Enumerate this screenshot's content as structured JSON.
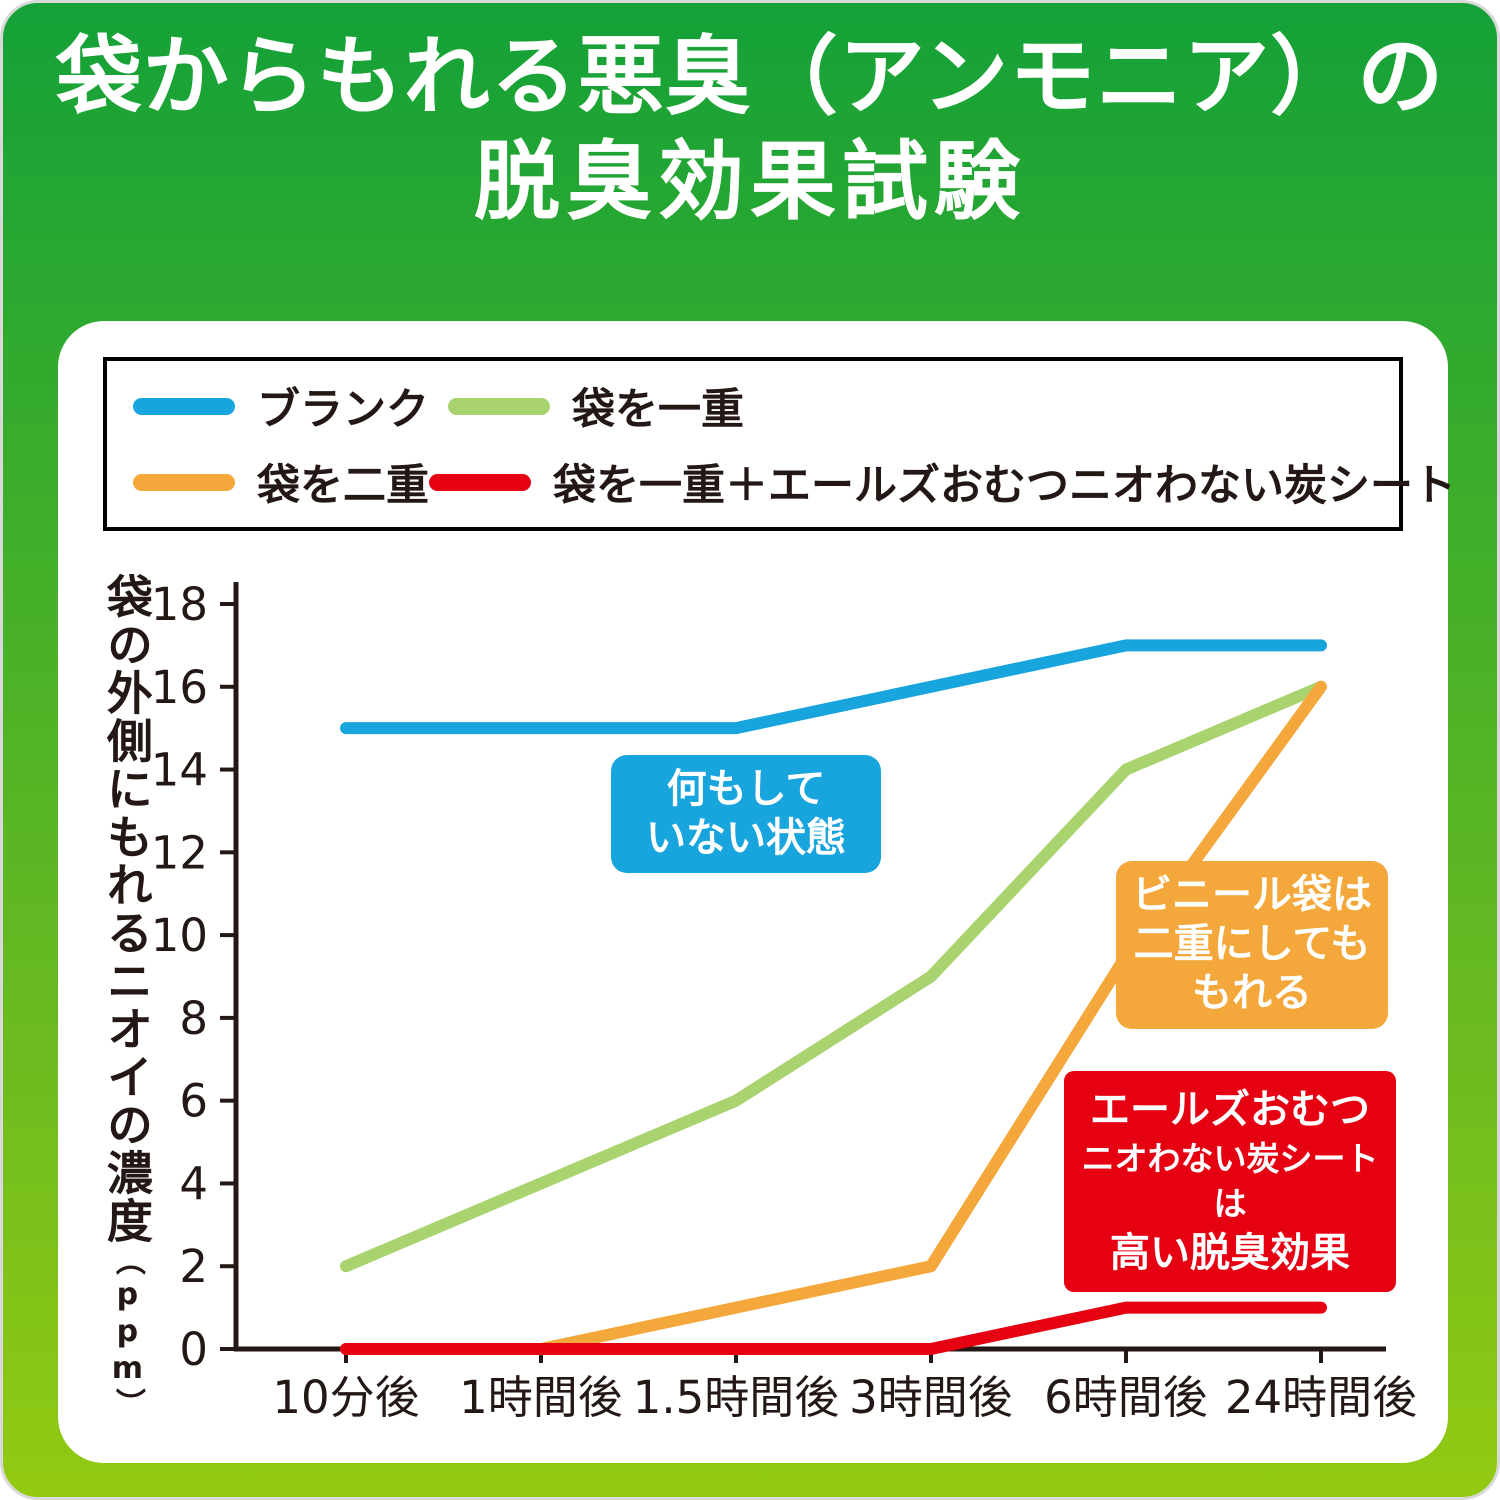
{
  "title": {
    "line1": "袋からもれる悪臭（アンモニア）の",
    "line2": "脱臭効果試験"
  },
  "legend": {
    "items": [
      {
        "label": "ブランク",
        "color": "#18a4dc"
      },
      {
        "label": "袋を一重",
        "color": "#a9d36e"
      },
      {
        "label": "袋を二重",
        "color": "#f4a83c"
      },
      {
        "label": "袋を一重＋エールズおむつニオわない炭シート",
        "color": "#e50012"
      }
    ]
  },
  "chart_data": {
    "type": "line",
    "categories": [
      "10分後",
      "1時間後",
      "1.5時間後",
      "3時間後",
      "6時間後",
      "24時間後"
    ],
    "series": [
      {
        "name": "ブランク",
        "color": "#18a4dc",
        "values": [
          15,
          15,
          15,
          16,
          17,
          17
        ]
      },
      {
        "name": "袋を一重",
        "color": "#a9d36e",
        "values": [
          2,
          4,
          6,
          9,
          14,
          16
        ]
      },
      {
        "name": "袋を二重",
        "color": "#f4a83c",
        "values": [
          0,
          0,
          1,
          2,
          9.5,
          16
        ]
      },
      {
        "name": "袋を一重＋エールズおむつニオわない炭シート",
        "color": "#e50012",
        "values": [
          0,
          0,
          0,
          0,
          1,
          1
        ]
      }
    ],
    "xlabel": "",
    "ylabel": "袋の外側にもれるニオイの濃度（ppm）",
    "ylabel_main": "袋の外側にもれるニオイの濃度",
    "ylabel_unit": "（ppm）",
    "ylim": [
      0,
      18
    ],
    "ytick_step": 2,
    "grid": false,
    "legend_position": "top",
    "axis_color": "#231815"
  },
  "callouts": {
    "blank": {
      "line1": "何もして",
      "line2": "いない状態",
      "bg": "#18a4dc"
    },
    "double_bag": {
      "line1": "ビニール袋は",
      "line2": "二重にしても",
      "line3": "もれる",
      "bg": "#f4a83c"
    },
    "charcoal": {
      "line1": "エールズおむつ",
      "line2": "ニオわない炭シートは",
      "line3": "高い脱臭効果",
      "bg": "#e50012"
    }
  }
}
